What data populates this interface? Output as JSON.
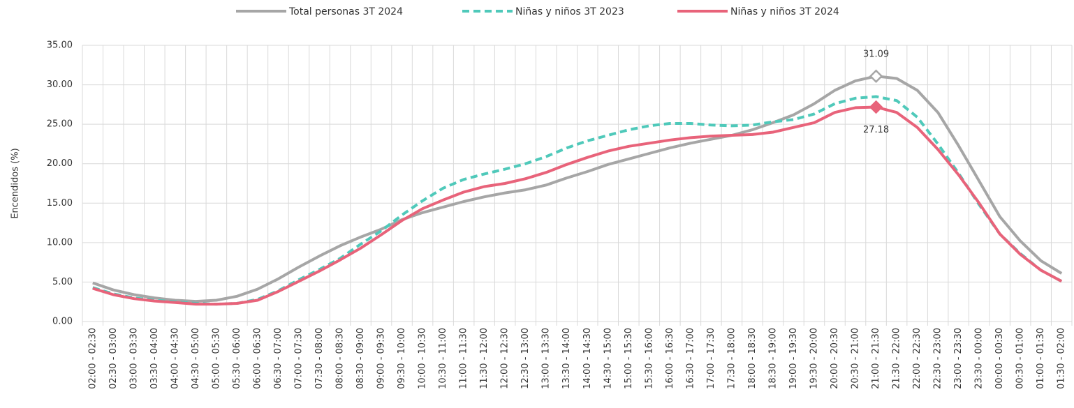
{
  "chart_data": {
    "type": "line",
    "y_label": "Encendidos (%)",
    "categories": [
      "02:00 - 02:30",
      "02:30 - 03:00",
      "03:00 - 03:30",
      "03:30 - 04:00",
      "04:00 - 04:30",
      "04:30 - 05:00",
      "05:00 - 05:30",
      "05:30 - 06:00",
      "06:00 - 06:30",
      "06:30 - 07:00",
      "07:00 - 07:30",
      "07:30 - 08:00",
      "08:00 - 08:30",
      "08:30 - 09:00",
      "09:00 - 09:30",
      "09:30 - 10:00",
      "10:00 - 10:30",
      "10:30 - 11:00",
      "11:00 - 11:30",
      "11:30 - 12:00",
      "12:00 - 12:30",
      "12:30 - 13:00",
      "13:00 - 13:30",
      "13:30 - 14:00",
      "14:00 - 14:30",
      "14:30 - 15:00",
      "15:00 - 15:30",
      "15:30 - 16:00",
      "16:00 - 16:30",
      "16:30 - 17:00",
      "17:00 - 17:30",
      "17:30 - 18:00",
      "18:00 - 18:30",
      "18:30 - 19:00",
      "19:00 - 19:30",
      "19:30 - 20:00",
      "20:00 - 20:30",
      "20:30 - 21:00",
      "21:00 - 21:30",
      "21:30 - 22:00",
      "22:00 - 22:30",
      "22:30 - 23:00",
      "23:00 - 23:30",
      "23:30 - 00:00",
      "00:00 - 00:30",
      "00:30 - 01:00",
      "01:00 - 01:30",
      "01:30 - 02:00"
    ],
    "series": [
      {
        "name": "Total personas 3T 2024",
        "color": "#a6a6a6",
        "dash": false,
        "values": [
          4.9,
          4.0,
          3.4,
          3.0,
          2.7,
          2.55,
          2.7,
          3.2,
          4.1,
          5.4,
          6.9,
          8.3,
          9.6,
          10.7,
          11.7,
          12.9,
          13.8,
          14.5,
          15.2,
          15.8,
          16.3,
          16.7,
          17.3,
          18.2,
          19.0,
          19.9,
          20.6,
          21.3,
          22.0,
          22.6,
          23.1,
          23.6,
          24.3,
          25.2,
          26.2,
          27.6,
          29.3,
          30.5,
          31.09,
          30.8,
          29.3,
          26.5,
          22.3,
          17.8,
          13.3,
          10.2,
          7.7,
          6.1
        ],
        "value_labels": [
          null,
          null,
          null,
          null,
          null,
          null,
          null,
          null,
          null,
          null,
          null,
          null,
          null,
          null,
          null,
          null,
          null,
          null,
          null,
          null,
          null,
          null,
          null,
          null,
          null,
          null,
          null,
          null,
          null,
          null,
          null,
          null,
          null,
          null,
          null,
          null,
          null,
          null,
          "31.09",
          null,
          null,
          null,
          null,
          null,
          null,
          null,
          null,
          null
        ]
      },
      {
        "name": "Niñas y niños 3T 2023",
        "color": "#4fc9ba",
        "dash": true,
        "values": [
          4.3,
          3.5,
          3.0,
          2.7,
          2.5,
          2.3,
          2.2,
          2.3,
          2.8,
          3.9,
          5.3,
          6.6,
          8.0,
          9.8,
          11.5,
          13.5,
          15.3,
          16.9,
          18.0,
          18.7,
          19.3,
          20.0,
          20.9,
          22.0,
          22.9,
          23.6,
          24.3,
          24.8,
          25.1,
          25.1,
          24.9,
          24.8,
          24.9,
          25.3,
          25.6,
          26.3,
          27.6,
          28.3,
          28.5,
          28.0,
          25.9,
          22.5,
          18.8,
          14.8,
          11.1,
          8.6,
          6.5,
          5.1
        ]
      },
      {
        "name": "Niñas y niños 3T 2024",
        "color": "#e8637a",
        "dash": false,
        "values": [
          4.2,
          3.4,
          2.9,
          2.6,
          2.4,
          2.2,
          2.2,
          2.3,
          2.7,
          3.8,
          5.1,
          6.4,
          7.8,
          9.3,
          11.0,
          12.8,
          14.3,
          15.4,
          16.4,
          17.1,
          17.5,
          18.1,
          18.9,
          19.9,
          20.8,
          21.6,
          22.2,
          22.6,
          23.0,
          23.3,
          23.5,
          23.6,
          23.7,
          24.0,
          24.6,
          25.2,
          26.5,
          27.1,
          27.18,
          26.5,
          24.6,
          21.8,
          18.6,
          15.0,
          11.1,
          8.5,
          6.5,
          5.1
        ],
        "value_labels": [
          null,
          null,
          null,
          null,
          null,
          null,
          null,
          null,
          null,
          null,
          null,
          null,
          null,
          null,
          null,
          null,
          null,
          null,
          null,
          null,
          null,
          null,
          null,
          null,
          null,
          null,
          null,
          null,
          null,
          null,
          null,
          null,
          null,
          null,
          null,
          null,
          null,
          null,
          "27.18",
          null,
          null,
          null,
          null,
          null,
          null,
          null,
          null,
          null
        ]
      }
    ],
    "ylim": [
      0,
      35
    ],
    "yticks": [
      {
        "value": 0,
        "label": "0.00"
      },
      {
        "value": 5,
        "label": "5.00"
      },
      {
        "value": 10,
        "label": "10.00"
      },
      {
        "value": 15,
        "label": "15.00"
      },
      {
        "value": 20,
        "label": "20.00"
      },
      {
        "value": 25,
        "label": "25.00"
      },
      {
        "value": 30,
        "label": "30.00"
      },
      {
        "value": 35,
        "label": "35.00"
      }
    ],
    "grid": true,
    "legend": "top"
  }
}
